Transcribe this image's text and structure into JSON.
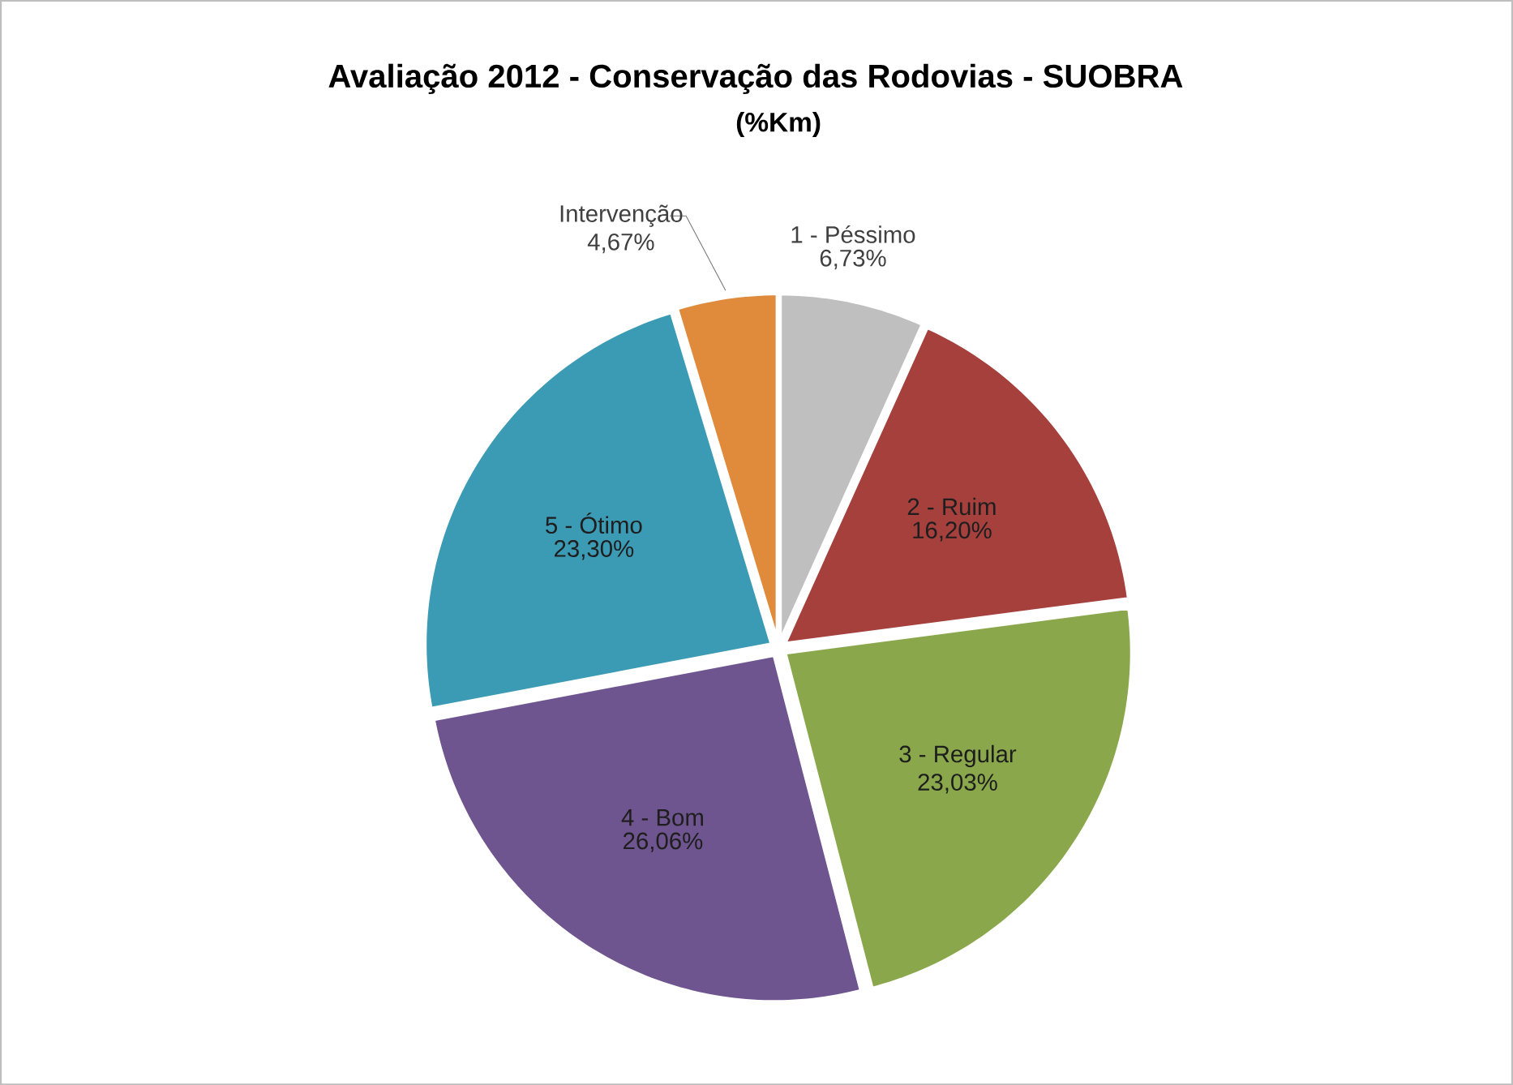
{
  "chart_data": {
    "type": "pie",
    "title": "Avaliação 2012 - Conservação das Rodovias - SUOBRA",
    "subtitle": "(%Km)",
    "categories": [
      "1 - Péssimo",
      "2 - Ruim",
      "3 - Regular",
      "4 - Bom",
      "5 - Ótimo",
      "Intervenção"
    ],
    "values": [
      6.73,
      16.2,
      23.03,
      26.06,
      23.3,
      4.67
    ],
    "value_labels": [
      "6,73%",
      "16,20%",
      "23,03%",
      "26,06%",
      "23,30%",
      "4,67%"
    ],
    "colors": [
      "#bfbfbf",
      "#a5403d",
      "#8aa84b",
      "#6f558f",
      "#3c9bb4",
      "#e08a3c"
    ]
  }
}
